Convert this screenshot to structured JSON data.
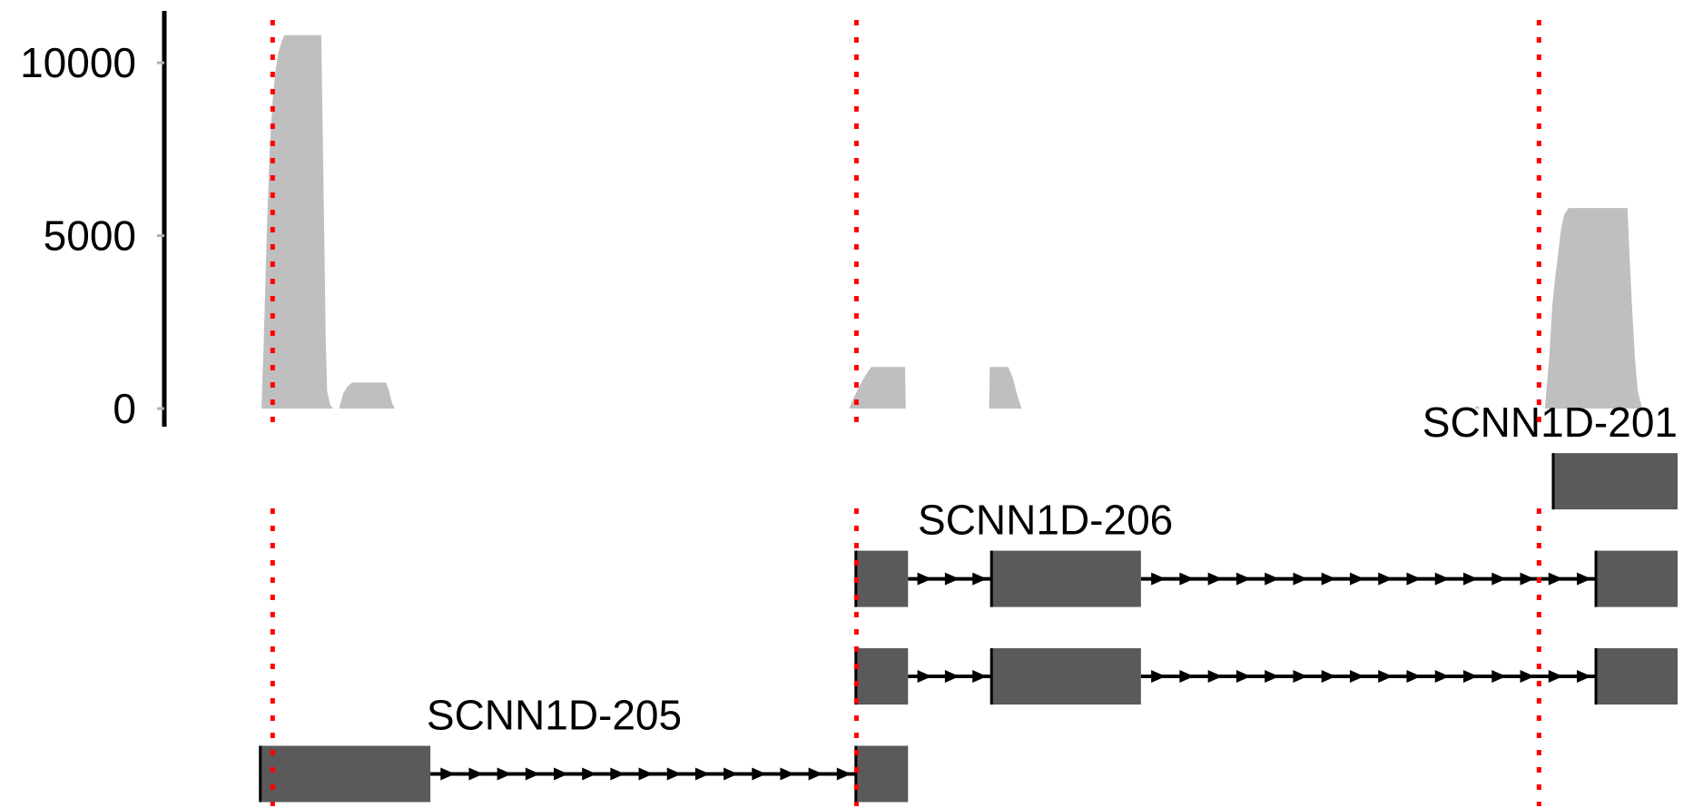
{
  "chart_data": {
    "type": "area",
    "title": "",
    "xlabel": "",
    "ylabel": "",
    "ylim": [
      0,
      11500
    ],
    "y_ticks": [
      {
        "value": 0,
        "label": "0"
      },
      {
        "value": 5000,
        "label": "5000"
      },
      {
        "value": 10000,
        "label": "10000"
      }
    ],
    "x_range": [
      0,
      1000
    ],
    "coverage": {
      "color": "#bfbfbf",
      "points": [
        [
          39.5,
          0
        ],
        [
          40,
          800
        ],
        [
          41,
          2000
        ],
        [
          43,
          5000
        ],
        [
          45,
          7500
        ],
        [
          47,
          8900
        ],
        [
          49,
          9800
        ],
        [
          51,
          10300
        ],
        [
          53,
          10600
        ],
        [
          55,
          10800
        ],
        [
          80,
          10800
        ],
        [
          81,
          8000
        ],
        [
          82,
          5000
        ],
        [
          83,
          2000
        ],
        [
          84,
          500
        ],
        [
          86,
          100
        ],
        [
          88,
          0
        ],
        [
          92,
          0
        ],
        [
          95,
          450
        ],
        [
          98,
          650
        ],
        [
          101,
          750
        ],
        [
          124,
          750
        ],
        [
          126,
          500
        ],
        [
          128,
          150
        ],
        [
          130,
          0
        ],
        [
          438,
          0
        ],
        [
          441,
          300
        ],
        [
          445,
          650
        ],
        [
          449,
          950
        ],
        [
          453,
          1200
        ],
        [
          476,
          1200
        ],
        [
          476.5,
          0
        ],
        [
          533,
          0
        ],
        [
          533.5,
          1200
        ],
        [
          546,
          1200
        ],
        [
          549,
          900
        ],
        [
          552,
          400
        ],
        [
          555,
          0
        ],
        [
          862,
          0
        ],
        [
          864,
          80
        ],
        [
          866,
          0
        ],
        [
          910,
          0
        ],
        [
          913,
          1500
        ],
        [
          915,
          3000
        ],
        [
          917,
          3800
        ],
        [
          919,
          4500
        ],
        [
          921,
          5200
        ],
        [
          923,
          5600
        ],
        [
          926,
          5800
        ],
        [
          966,
          5800
        ],
        [
          967,
          4800
        ],
        [
          969,
          3000
        ],
        [
          971,
          1500
        ],
        [
          973,
          500
        ],
        [
          976,
          0
        ]
      ]
    },
    "markers": {
      "color": "#ff0000",
      "x": [
        47,
        443,
        906
      ]
    },
    "transcripts": [
      {
        "name": "SCNN1D-201",
        "color": "#5a5a5a",
        "exons": [
          [
            915,
            1000
          ]
        ],
        "introns": []
      },
      {
        "name": "SCNN1D-206",
        "color": "#5a5a5a",
        "exons": [
          [
            442,
            478
          ],
          [
            534,
            636
          ],
          [
            944,
            1000
          ]
        ],
        "introns": [
          [
            478,
            534
          ],
          [
            636,
            944
          ]
        ]
      },
      {
        "name": "",
        "color": "#5a5a5a",
        "exons": [
          [
            442,
            478
          ],
          [
            534,
            636
          ],
          [
            944,
            1000
          ]
        ],
        "introns": [
          [
            478,
            534
          ],
          [
            636,
            944
          ]
        ]
      },
      {
        "name": "SCNN1D-205",
        "color": "#5a5a5a",
        "exons": [
          [
            38,
            154
          ],
          [
            442,
            478
          ]
        ],
        "introns": [
          [
            154,
            442
          ]
        ]
      }
    ]
  }
}
